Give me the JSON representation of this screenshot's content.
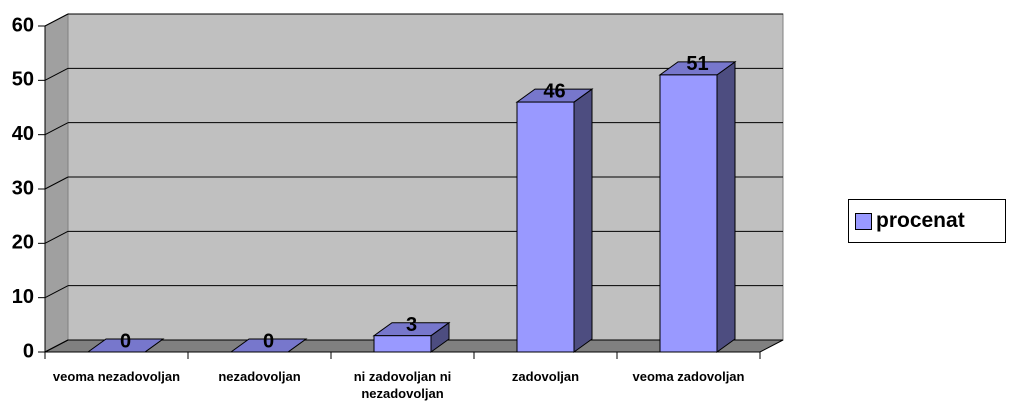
{
  "chart_data": {
    "type": "bar3d",
    "categories": [
      "veoma nezadovoljan",
      "nezadovoljan",
      "ni zadovoljan ni nezadovoljan",
      "zadovoljan",
      "veoma zadovoljan"
    ],
    "series": [
      {
        "name": "procenat",
        "color": "#9999ff",
        "values": [
          0,
          0,
          3,
          46,
          51
        ]
      }
    ],
    "ylim": [
      0,
      60
    ],
    "yticks": [
      0,
      10,
      20,
      30,
      40,
      50,
      60
    ],
    "grid": true,
    "legend": "right"
  }
}
